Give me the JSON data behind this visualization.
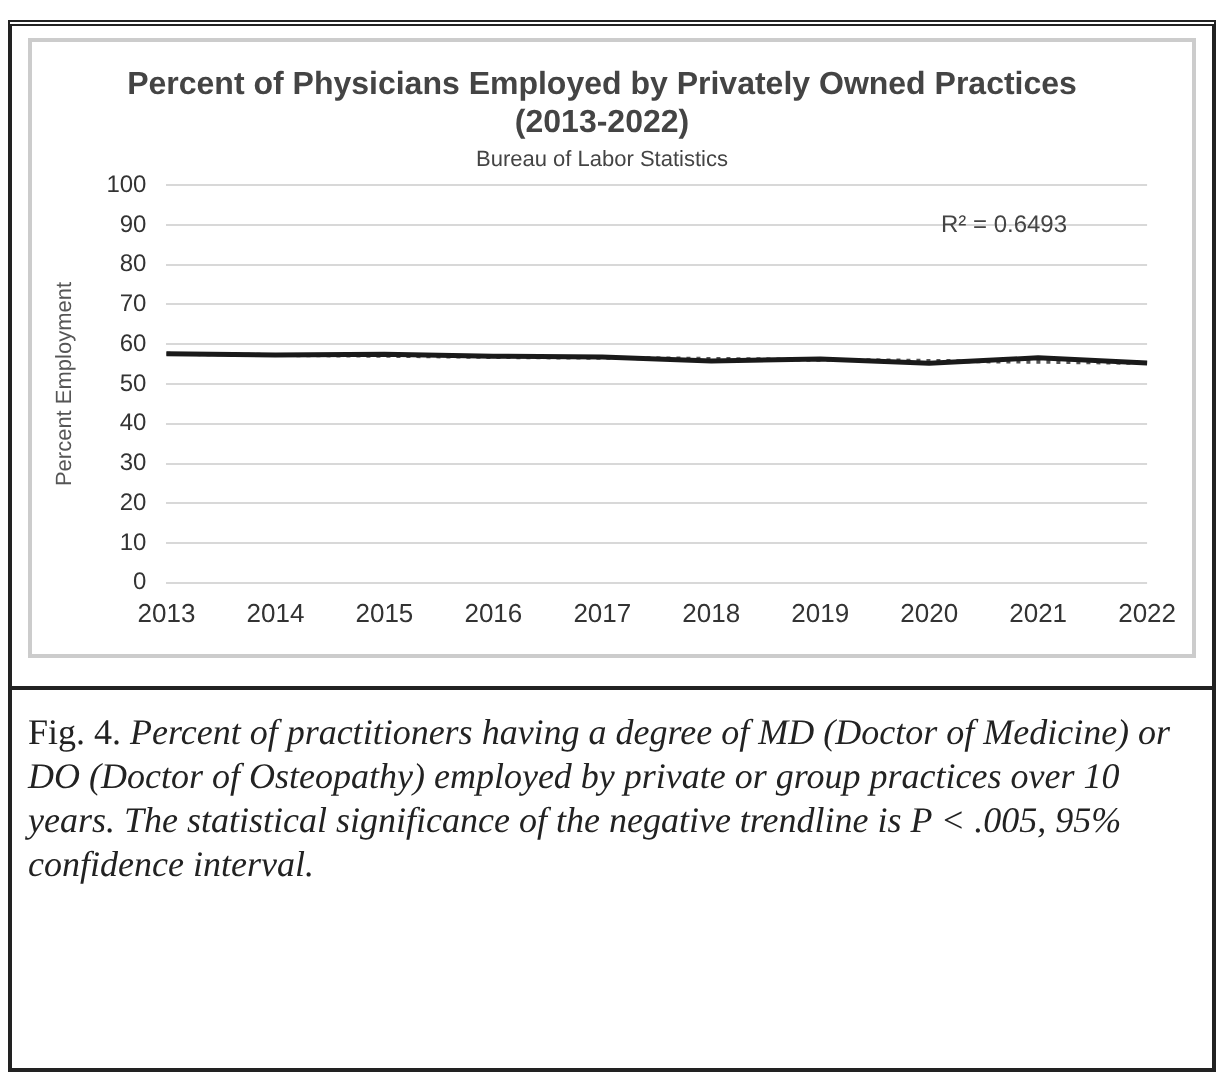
{
  "chart_data": {
    "type": "line",
    "title": "Percent of Physicians Employed by Privately Owned Practices (2013-2022)",
    "subtitle": "Bureau of Labor Statistics",
    "ylabel": "Percent Employment",
    "categories": [
      "2013",
      "2014",
      "2015",
      "2016",
      "2017",
      "2018",
      "2019",
      "2020",
      "2021",
      "2022"
    ],
    "series": [
      {
        "color": "#1a1a1a",
        "line_style": "solid",
        "values": [
          57.6,
          57.3,
          57.5,
          57.0,
          56.8,
          55.8,
          56.3,
          55.2,
          56.6,
          55.3
        ]
      },
      {
        "type": "line",
        "color": "#555555",
        "line_style": "dotted",
        "values": [
          57.6,
          57.3,
          57.1,
          56.8,
          56.6,
          56.3,
          56.1,
          55.8,
          55.6,
          55.3
        ]
      }
    ],
    "ylim": [
      0,
      100
    ],
    "yticks": [
      0,
      10,
      20,
      30,
      40,
      50,
      60,
      70,
      80,
      90,
      100
    ],
    "grid": "y",
    "legend": false,
    "marker": "none",
    "annotations": [
      "R² = 0.6493",
      "Fig. 4.",
      "Percent of practitioners having a degree of MD (Doctor of Medicine) or DO (Doctor of Osteopathy) employed by private or group practices over 10 years. The statistical significance of the negative trendline is P < .005, 95% confidence interval."
    ]
  }
}
